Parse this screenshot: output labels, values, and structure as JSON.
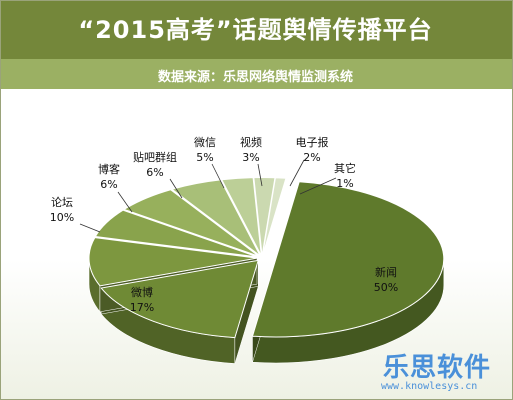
{
  "chart_data": {
    "type": "pie",
    "title": "“2015高考”话题舆情传播平台",
    "subtitle": "数据来源：乐思网络舆情监测系统",
    "slices": [
      {
        "label": "新闻",
        "value": 50,
        "pct": "50%",
        "color": "#5f7a2c"
      },
      {
        "label": "微博",
        "value": 17,
        "pct": "17%",
        "color": "#6f8a35"
      },
      {
        "label": "论坛",
        "value": 10,
        "pct": "10%",
        "color": "#7d973f"
      },
      {
        "label": "博客",
        "value": 6,
        "pct": "6%",
        "color": "#89a34c"
      },
      {
        "label": "贴吧群组",
        "value": 6,
        "pct": "6%",
        "color": "#97b05c"
      },
      {
        "label": "微信",
        "value": 5,
        "pct": "5%",
        "color": "#a8bf78"
      },
      {
        "label": "视频",
        "value": 3,
        "pct": "3%",
        "color": "#bccf97"
      },
      {
        "label": "电子报",
        "value": 2,
        "pct": "2%",
        "color": "#cbd9b0"
      },
      {
        "label": "其它",
        "value": 1,
        "pct": "1%",
        "color": "#d9e3c6"
      }
    ]
  },
  "watermark": {
    "brand": "乐思软件",
    "url": "www.knowlesys.cn"
  }
}
